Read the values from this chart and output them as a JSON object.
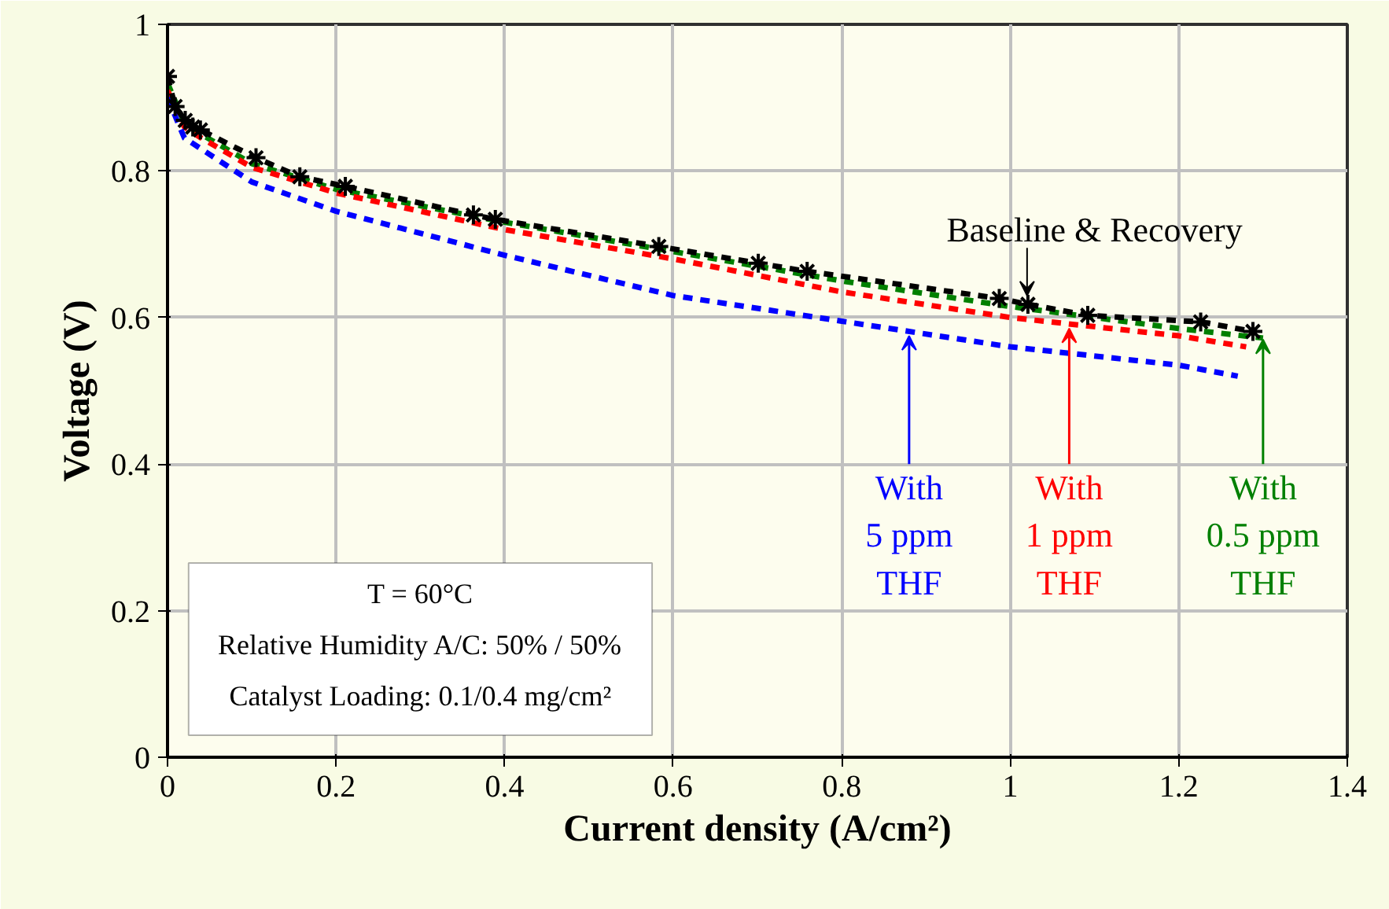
{
  "chart_data": {
    "type": "line",
    "xlabel": "Current density (A/cm²)",
    "ylabel": "Voltage (V)",
    "xlim": [
      0,
      1.4
    ],
    "ylim": [
      0,
      1
    ],
    "xticks": [
      0,
      0.2,
      0.4,
      0.6,
      0.8,
      1,
      1.2,
      1.4
    ],
    "yticks": [
      0,
      0.2,
      0.4,
      0.6,
      0.8,
      1
    ],
    "grid": true,
    "line_style": "dashed",
    "marker": "none",
    "series": [
      {
        "color": "#000000",
        "marker": "cross",
        "x": [
          0,
          0.009,
          0.021,
          0.03,
          0.039,
          0.105,
          0.157,
          0.211,
          0.363,
          0.389,
          0.583,
          0.701,
          0.759,
          0.987,
          1.021,
          1.092,
          1.226,
          1.288
        ],
        "values": [
          0.929,
          0.888,
          0.869,
          0.86,
          0.856,
          0.818,
          0.792,
          0.779,
          0.74,
          0.734,
          0.697,
          0.674,
          0.663,
          0.626,
          0.618,
          0.603,
          0.594,
          0.581
        ]
      },
      {
        "color": "#0000ff",
        "x": [
          0,
          0.02,
          0.04,
          0.1,
          0.2,
          0.4,
          0.6,
          0.8,
          1.0,
          1.2,
          1.27
        ],
        "values": [
          0.9,
          0.845,
          0.83,
          0.785,
          0.745,
          0.685,
          0.63,
          0.595,
          0.56,
          0.535,
          0.52
        ]
      },
      {
        "color": "#ff0000",
        "x": [
          0,
          0.02,
          0.04,
          0.1,
          0.2,
          0.4,
          0.6,
          0.8,
          1.0,
          1.2,
          1.28
        ],
        "values": [
          0.91,
          0.86,
          0.845,
          0.805,
          0.77,
          0.72,
          0.68,
          0.635,
          0.6,
          0.575,
          0.56
        ]
      },
      {
        "color": "#008000",
        "x": [
          0,
          0.02,
          0.04,
          0.1,
          0.2,
          0.4,
          0.6,
          0.8,
          1.0,
          1.2,
          1.3
        ],
        "values": [
          0.92,
          0.865,
          0.85,
          0.81,
          0.775,
          0.73,
          0.69,
          0.65,
          0.615,
          0.585,
          0.572
        ]
      }
    ],
    "annotations": [
      {
        "text": "Baseline & Recovery",
        "x": 1.02,
        "y": 0.625
      },
      {
        "text": "With\n5 ppm\nTHF",
        "x": 0.88,
        "y": 0.58
      },
      {
        "text": "With\n1 ppm\nTHF",
        "x": 1.07,
        "y": 0.59
      },
      {
        "text": "With\n0.5 ppm\nTHF",
        "x": 1.3,
        "y": 0.575
      },
      "T = 60°C\nRelative Humidity A/C: 50% / 50%\nCatalyst Loading: 0.1/0.4 mg/cm²"
    ]
  }
}
